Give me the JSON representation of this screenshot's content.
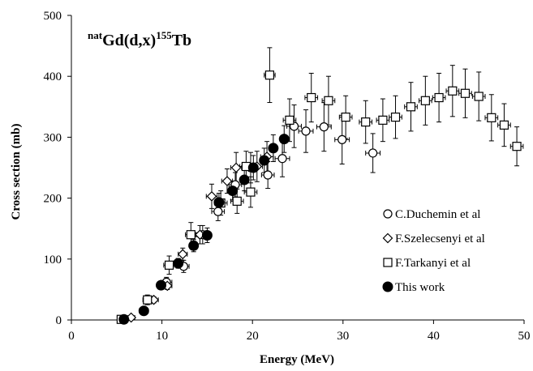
{
  "chart_data": {
    "type": "scatter",
    "title": {
      "pre_sup": "nat",
      "main": "Gd(d,x)",
      "sup": "155",
      "post": "Tb"
    },
    "xlabel": "Energy (MeV)",
    "ylabel": "Cross section (mb)",
    "xlim": [
      0,
      50
    ],
    "ylim": [
      0,
      500
    ],
    "x_ticks": [
      0,
      10,
      20,
      30,
      40,
      50
    ],
    "y_ticks": [
      0,
      100,
      200,
      300,
      400,
      500
    ],
    "grid": false,
    "legend_position": "right",
    "series": [
      {
        "name": "C.Duchemin et al",
        "marker": "circle-open",
        "points": [
          [
            5.6,
            1,
            0.5,
            0
          ],
          [
            8.0,
            15,
            0.5,
            5
          ],
          [
            10.5,
            62,
            0.6,
            8
          ],
          [
            12.4,
            88,
            0.6,
            10
          ],
          [
            14.5,
            140,
            0.7,
            15
          ],
          [
            16.2,
            178,
            0.7,
            15
          ],
          [
            18.1,
            222,
            0.7,
            20
          ],
          [
            19.8,
            250,
            0.7,
            25
          ],
          [
            21.7,
            238,
            0.7,
            22
          ],
          [
            23.3,
            265,
            0.8,
            30
          ],
          [
            24.6,
            318,
            0.8,
            35
          ],
          [
            25.9,
            310,
            0.8,
            35
          ],
          [
            27.9,
            317,
            0.8,
            40
          ],
          [
            29.9,
            296,
            0.8,
            40
          ],
          [
            33.3,
            274,
            0.8,
            32
          ]
        ]
      },
      {
        "name": "F.Szelecsenyi et al",
        "marker": "diamond-open",
        "points": [
          [
            6.6,
            4,
            0.4,
            2
          ],
          [
            9.1,
            33,
            0.5,
            5
          ],
          [
            10.6,
            56,
            0.5,
            6
          ],
          [
            12.3,
            108,
            0.5,
            10
          ],
          [
            14.2,
            140,
            0.5,
            15
          ],
          [
            15.5,
            203,
            0.6,
            20
          ],
          [
            17.2,
            228,
            0.6,
            20
          ],
          [
            18.2,
            250,
            0.6,
            25
          ],
          [
            20.5,
            252,
            0.6,
            25
          ],
          [
            21.6,
            268,
            0.7,
            25
          ]
        ]
      },
      {
        "name": "F.Tarkanyi et al",
        "marker": "square-open",
        "points": [
          [
            5.5,
            1,
            0.4,
            0
          ],
          [
            8.4,
            33,
            0.5,
            8
          ],
          [
            10.8,
            90,
            0.6,
            15
          ],
          [
            13.2,
            140,
            0.6,
            20
          ],
          [
            16.5,
            192,
            0.7,
            20
          ],
          [
            18.3,
            195,
            0.7,
            20
          ],
          [
            19.3,
            252,
            0.7,
            25
          ],
          [
            19.8,
            210,
            0.7,
            25
          ],
          [
            21.9,
            402,
            0.6,
            45
          ],
          [
            24.1,
            328,
            0.7,
            35
          ],
          [
            26.5,
            365,
            0.7,
            40
          ],
          [
            28.4,
            360,
            0.7,
            40
          ],
          [
            30.3,
            333,
            0.7,
            35
          ],
          [
            32.5,
            325,
            0.7,
            35
          ],
          [
            34.4,
            328,
            0.7,
            35
          ],
          [
            35.8,
            333,
            0.7,
            35
          ],
          [
            37.5,
            350,
            0.7,
            40
          ],
          [
            39.1,
            360,
            0.7,
            40
          ],
          [
            40.6,
            365,
            0.7,
            40
          ],
          [
            42.1,
            376,
            0.7,
            42
          ],
          [
            43.5,
            372,
            0.7,
            40
          ],
          [
            45.0,
            367,
            0.7,
            40
          ],
          [
            46.4,
            332,
            0.7,
            38
          ],
          [
            47.8,
            320,
            0.7,
            35
          ],
          [
            49.2,
            285,
            0.7,
            32
          ]
        ]
      },
      {
        "name": "This work",
        "marker": "circle-filled",
        "points": [
          [
            5.8,
            1,
            0.3,
            0
          ],
          [
            8.0,
            15,
            0.3,
            3
          ],
          [
            9.9,
            57,
            0.3,
            5
          ],
          [
            11.8,
            93,
            0.3,
            8
          ],
          [
            13.5,
            122,
            0.3,
            10
          ],
          [
            15.0,
            139,
            0.3,
            12
          ],
          [
            16.3,
            193,
            0.3,
            15
          ],
          [
            17.8,
            212,
            0.3,
            15
          ],
          [
            19.1,
            230,
            0.3,
            18
          ],
          [
            20.1,
            250,
            0.3,
            20
          ],
          [
            21.3,
            262,
            0.3,
            20
          ],
          [
            22.3,
            282,
            0.3,
            22
          ],
          [
            23.5,
            297,
            0.3,
            22
          ]
        ]
      }
    ]
  }
}
